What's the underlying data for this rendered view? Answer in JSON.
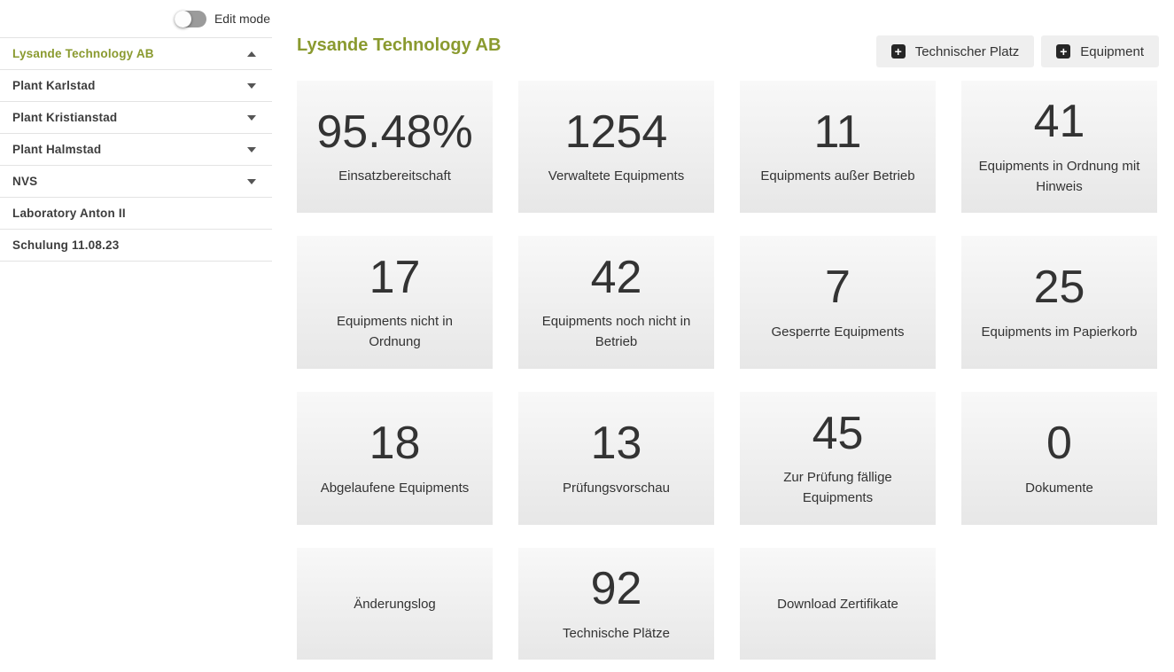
{
  "sidebar": {
    "edit_mode_label": "Edit mode",
    "items": [
      {
        "label": "Lysande Technology AB",
        "selected": true,
        "arrow": "up"
      },
      {
        "label": "Plant Karlstad",
        "selected": false,
        "arrow": "down"
      },
      {
        "label": "Plant Kristianstad",
        "selected": false,
        "arrow": "down"
      },
      {
        "label": "Plant Halmstad",
        "selected": false,
        "arrow": "down"
      },
      {
        "label": "NVS",
        "selected": false,
        "arrow": "down"
      },
      {
        "label": "Laboratory Anton II",
        "selected": false,
        "arrow": "none"
      },
      {
        "label": "Schulung 11.08.23",
        "selected": false,
        "arrow": "none"
      }
    ]
  },
  "header": {
    "title": "Lysande Technology AB",
    "buttons": [
      {
        "label": "Technischer Platz",
        "icon": "plus-square-icon",
        "icon_glyph": "+"
      },
      {
        "label": "Equipment",
        "icon": "plus-square-icon",
        "icon_glyph": "+"
      }
    ]
  },
  "cards": [
    {
      "value": "95.48%",
      "label": "Einsatzbereitschaft"
    },
    {
      "value": "1254",
      "label": "Verwaltete Equipments"
    },
    {
      "value": "11",
      "label": "Equipments außer Betrieb"
    },
    {
      "value": "41",
      "label": "Equipments in Ordnung mit Hinweis"
    },
    {
      "value": "17",
      "label": "Equipments nicht in Ordnung"
    },
    {
      "value": "42",
      "label": "Equipments noch nicht in Betrieb"
    },
    {
      "value": "7",
      "label": "Gesperrte Equipments"
    },
    {
      "value": "25",
      "label": "Equipments im Papierkorb"
    },
    {
      "value": "18",
      "label": "Abgelaufene Equipments"
    },
    {
      "value": "13",
      "label": "Prüfungsvorschau"
    },
    {
      "value": "45",
      "label": "Zur Prüfung fällige Equipments"
    },
    {
      "value": "0",
      "label": "Dokumente"
    },
    {
      "value": "",
      "label": "Änderungslog"
    },
    {
      "value": "92",
      "label": "Technische Plätze"
    },
    {
      "value": "",
      "label": "Download Zertifikate"
    }
  ],
  "colors": {
    "accent": "#8a9a2f",
    "card_gradient_top": "#f8f8f8",
    "card_gradient_bottom": "#e7e7e7",
    "text": "#333333",
    "divider": "#e3e3e3"
  },
  "toggle": {
    "state": "off"
  }
}
